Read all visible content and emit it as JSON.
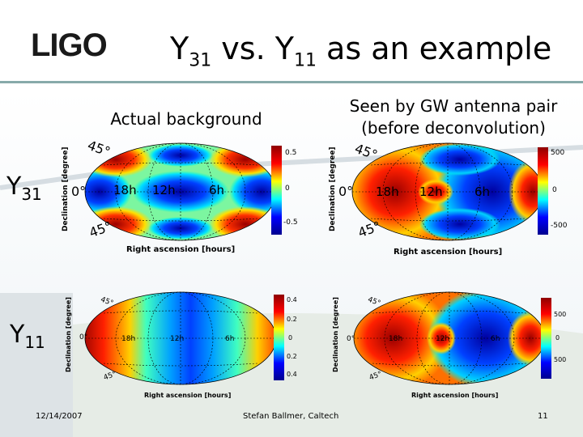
{
  "slide": {
    "logo": "LIGO",
    "title": {
      "main_left": "Y",
      "sub1": "31",
      "vs": " vs. Y",
      "sub2": "11",
      "rest": " as an example"
    },
    "caption_actual": "Actual background",
    "caption_seen_line1": "Seen by GW antenna pair",
    "caption_seen_line2": "(before deconvolution)",
    "row_y31": {
      "base": "Y",
      "sub": "31"
    },
    "row_y11": {
      "base": "Y",
      "sub": "11"
    },
    "footer_date": "12/14/2007",
    "footer_author": "Stefan Ballmer, Caltech",
    "footer_page": "11"
  },
  "map_labels": {
    "ylabel": "Declination [degree]",
    "xlabel": "Right ascension [hours]",
    "lat_top": "45°",
    "lat_mid": "0°",
    "lat_bottom": "45°",
    "ra_18": "18h",
    "ra_12": "12h",
    "ra_6": "6h"
  },
  "colorbars": {
    "actual_y31": {
      "top": "0.5",
      "mid": "0",
      "bottom": "-0.5"
    },
    "seen_y31": {
      "top": "500",
      "mid": "0",
      "bottom": "-500"
    },
    "actual_y11": {
      "t1": "0.4",
      "t2": "0.2",
      "t3": "0",
      "t4": "0.2",
      "t5": "0.4"
    },
    "seen_y11": {
      "top": "500",
      "mid": "0",
      "bottom": "500"
    }
  },
  "colors": {
    "hot": "#c00000",
    "cold": "#0050d0",
    "accent_rule": "#8aa"
  }
}
